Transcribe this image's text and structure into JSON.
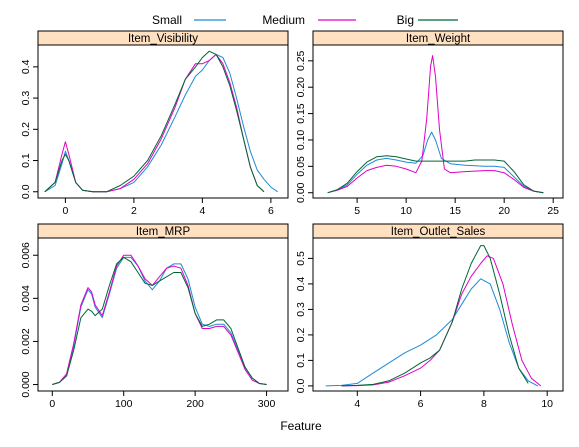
{
  "legend": {
    "placement": "top",
    "items": [
      {
        "label": "Small",
        "color": "#1f8ad6"
      },
      {
        "label": "Medium",
        "color": "#e000c8"
      },
      {
        "label": "Big",
        "color": "#006633"
      }
    ]
  },
  "xlabel": "Feature",
  "panel_strip_color": "#ffe0c0",
  "chart_data": [
    {
      "type": "line",
      "title": "Item_Visibility",
      "xlim": [
        -0.8,
        6.5
      ],
      "ylim": [
        -0.02,
        0.47
      ],
      "xticks": [
        0,
        2,
        4,
        6
      ],
      "yticks": [
        0.0,
        0.1,
        0.2,
        0.3,
        0.4
      ],
      "ytick_labels": [
        "0.0",
        "0.1",
        "0.2",
        "0.3",
        "0.4"
      ],
      "series": [
        {
          "name": "Small",
          "x": [
            -0.6,
            -0.3,
            -0.1,
            0,
            0.1,
            0.3,
            0.5,
            0.8,
            1.2,
            1.6,
            2.0,
            2.4,
            2.8,
            3.2,
            3.5,
            3.8,
            4.0,
            4.2,
            4.4,
            4.6,
            4.8,
            5.0,
            5.2,
            5.4,
            5.6,
            5.8,
            6.0,
            6.2
          ],
          "y": [
            0.0,
            0.02,
            0.09,
            0.13,
            0.1,
            0.03,
            0.005,
            0.0,
            0.0,
            0.01,
            0.03,
            0.08,
            0.15,
            0.24,
            0.31,
            0.37,
            0.39,
            0.42,
            0.44,
            0.43,
            0.38,
            0.3,
            0.21,
            0.13,
            0.07,
            0.04,
            0.015,
            0.0
          ]
        },
        {
          "name": "Medium",
          "x": [
            -0.6,
            -0.3,
            -0.1,
            0,
            0.1,
            0.3,
            0.5,
            0.8,
            1.2,
            1.6,
            2.0,
            2.4,
            2.8,
            3.2,
            3.5,
            3.8,
            4.0,
            4.2,
            4.4,
            4.6,
            4.8,
            5.0,
            5.2,
            5.4,
            5.6,
            5.8
          ],
          "y": [
            0.0,
            0.03,
            0.12,
            0.16,
            0.12,
            0.03,
            0.005,
            0.0,
            0.0,
            0.01,
            0.04,
            0.09,
            0.17,
            0.27,
            0.36,
            0.41,
            0.41,
            0.42,
            0.44,
            0.41,
            0.35,
            0.27,
            0.17,
            0.08,
            0.02,
            0.0
          ]
        },
        {
          "name": "Big",
          "x": [
            -0.6,
            -0.3,
            -0.1,
            0,
            0.1,
            0.3,
            0.5,
            0.8,
            1.2,
            1.6,
            2.0,
            2.4,
            2.8,
            3.2,
            3.5,
            3.8,
            4.0,
            4.2,
            4.4,
            4.6,
            4.8,
            5.0,
            5.2,
            5.4,
            5.6,
            5.8
          ],
          "y": [
            0.0,
            0.03,
            0.1,
            0.12,
            0.1,
            0.03,
            0.005,
            0.0,
            0.0,
            0.02,
            0.05,
            0.1,
            0.18,
            0.28,
            0.36,
            0.4,
            0.43,
            0.45,
            0.44,
            0.4,
            0.34,
            0.26,
            0.17,
            0.08,
            0.02,
            0.0
          ]
        }
      ]
    },
    {
      "type": "line",
      "title": "Item_Weight",
      "xlim": [
        0.5,
        26
      ],
      "ylim": [
        -0.01,
        0.28
      ],
      "xticks": [
        5,
        10,
        15,
        20,
        25
      ],
      "yticks": [
        0.0,
        0.05,
        0.1,
        0.15,
        0.2,
        0.25
      ],
      "ytick_labels": [
        "0.00",
        "0.05",
        "0.10",
        "0.15",
        "0.20",
        "0.25"
      ],
      "series": [
        {
          "name": "Small",
          "x": [
            2,
            3,
            4,
            5,
            6,
            7,
            8,
            9,
            10,
            11,
            11.7,
            12.2,
            12.6,
            13,
            13.6,
            14.5,
            16,
            18,
            19,
            20,
            21,
            22,
            23,
            24
          ],
          "y": [
            0.0,
            0.005,
            0.015,
            0.035,
            0.052,
            0.062,
            0.065,
            0.062,
            0.058,
            0.056,
            0.07,
            0.1,
            0.115,
            0.1,
            0.065,
            0.055,
            0.052,
            0.05,
            0.05,
            0.048,
            0.03,
            0.012,
            0.003,
            0.0
          ]
        },
        {
          "name": "Medium",
          "x": [
            2,
            3,
            4,
            5,
            6,
            7,
            8,
            9,
            10,
            11,
            11.6,
            12.1,
            12.5,
            12.7,
            13,
            13.4,
            13.9,
            14.5,
            16,
            18,
            19,
            20,
            21,
            22,
            23,
            24
          ],
          "y": [
            0.0,
            0.005,
            0.012,
            0.028,
            0.042,
            0.048,
            0.052,
            0.05,
            0.045,
            0.038,
            0.06,
            0.14,
            0.24,
            0.26,
            0.22,
            0.12,
            0.045,
            0.038,
            0.04,
            0.042,
            0.042,
            0.038,
            0.025,
            0.01,
            0.003,
            0.0
          ]
        },
        {
          "name": "Big",
          "x": [
            2,
            3,
            4,
            5,
            6,
            7,
            8,
            9,
            10,
            11,
            12,
            13,
            14,
            15,
            16,
            17,
            18,
            19,
            20,
            21,
            22,
            23,
            24
          ],
          "y": [
            0.0,
            0.006,
            0.018,
            0.04,
            0.058,
            0.068,
            0.07,
            0.068,
            0.064,
            0.06,
            0.06,
            0.06,
            0.06,
            0.06,
            0.06,
            0.062,
            0.062,
            0.062,
            0.06,
            0.04,
            0.015,
            0.003,
            0.0
          ]
        }
      ]
    },
    {
      "type": "line",
      "title": "Item_MRP",
      "xlim": [
        -20,
        330
      ],
      "ylim": [
        -0.0003,
        0.0068
      ],
      "xticks": [
        0,
        100,
        200,
        300
      ],
      "yticks": [
        0.0,
        0.002,
        0.004,
        0.006
      ],
      "ytick_labels": [
        "0.000",
        "0.002",
        "0.004",
        "0.006"
      ],
      "series": [
        {
          "name": "Small",
          "x": [
            0,
            10,
            20,
            30,
            40,
            50,
            55,
            60,
            70,
            80,
            90,
            100,
            110,
            120,
            130,
            140,
            150,
            160,
            170,
            180,
            190,
            200,
            210,
            220,
            230,
            240,
            250,
            260,
            270,
            280,
            290,
            300
          ],
          "y": [
            0,
            0.0001,
            0.0004,
            0.0018,
            0.0036,
            0.0044,
            0.0042,
            0.0036,
            0.0031,
            0.0042,
            0.0054,
            0.0059,
            0.0059,
            0.0055,
            0.0048,
            0.0044,
            0.0048,
            0.0054,
            0.0056,
            0.0056,
            0.0049,
            0.0036,
            0.0028,
            0.0027,
            0.0028,
            0.0028,
            0.0024,
            0.0016,
            0.0008,
            0.0003,
            5e-05,
            0
          ]
        },
        {
          "name": "Medium",
          "x": [
            0,
            10,
            20,
            30,
            40,
            50,
            55,
            60,
            70,
            80,
            90,
            100,
            110,
            120,
            130,
            140,
            150,
            160,
            170,
            180,
            190,
            200,
            210,
            220,
            230,
            240,
            250,
            260,
            270,
            280,
            290,
            300
          ],
          "y": [
            0,
            0.0001,
            0.0005,
            0.0019,
            0.0037,
            0.0045,
            0.0043,
            0.0037,
            0.0032,
            0.0043,
            0.0055,
            0.006,
            0.006,
            0.0055,
            0.0049,
            0.0046,
            0.005,
            0.0054,
            0.0055,
            0.0054,
            0.0046,
            0.0033,
            0.0026,
            0.0026,
            0.0027,
            0.0027,
            0.0023,
            0.0015,
            0.0007,
            0.0002,
            5e-05,
            0
          ]
        },
        {
          "name": "Big",
          "x": [
            0,
            10,
            20,
            30,
            40,
            50,
            55,
            60,
            70,
            80,
            90,
            100,
            110,
            120,
            130,
            140,
            150,
            160,
            170,
            180,
            190,
            200,
            210,
            220,
            230,
            240,
            250,
            260,
            270,
            280,
            290,
            300
          ],
          "y": [
            0,
            0.0001,
            0.0004,
            0.0016,
            0.0031,
            0.0035,
            0.0034,
            0.0032,
            0.0035,
            0.0046,
            0.0056,
            0.0059,
            0.0057,
            0.0052,
            0.0047,
            0.0046,
            0.0048,
            0.005,
            0.0052,
            0.0052,
            0.0045,
            0.0033,
            0.0027,
            0.0028,
            0.003,
            0.003,
            0.0026,
            0.0017,
            0.0008,
            0.0003,
            5e-05,
            0
          ]
        }
      ]
    },
    {
      "type": "line",
      "title": "Item_Outlet_Sales",
      "xlim": [
        2.6,
        10.5
      ],
      "ylim": [
        -0.02,
        0.58
      ],
      "xticks": [
        4,
        6,
        8,
        10
      ],
      "yticks": [
        0.0,
        0.1,
        0.2,
        0.3,
        0.4,
        0.5
      ],
      "ytick_labels": [
        "0.0",
        "0.1",
        "0.2",
        "0.3",
        "0.4",
        "0.5"
      ],
      "series": [
        {
          "name": "Small",
          "x": [
            3,
            3.5,
            4,
            4.5,
            5,
            5.5,
            6,
            6.5,
            7,
            7.3,
            7.6,
            7.9,
            8.2,
            8.5,
            8.8,
            9.1,
            9.4,
            9.7
          ],
          "y": [
            0,
            0.002,
            0.01,
            0.05,
            0.09,
            0.13,
            0.16,
            0.2,
            0.26,
            0.32,
            0.38,
            0.42,
            0.4,
            0.3,
            0.17,
            0.07,
            0.02,
            0.0
          ]
        },
        {
          "name": "Medium",
          "x": [
            3.5,
            4,
            4.5,
            5,
            5.5,
            6,
            6.3,
            6.6,
            7,
            7.3,
            7.6,
            7.9,
            8.1,
            8.3,
            8.6,
            8.9,
            9.2,
            9.5,
            9.8
          ],
          "y": [
            0,
            0.001,
            0.004,
            0.015,
            0.04,
            0.07,
            0.1,
            0.14,
            0.25,
            0.36,
            0.43,
            0.48,
            0.51,
            0.5,
            0.4,
            0.24,
            0.1,
            0.03,
            0.0
          ]
        },
        {
          "name": "Big",
          "x": [
            3.5,
            4,
            4.5,
            5,
            5.5,
            6,
            6.3,
            6.6,
            7,
            7.3,
            7.6,
            7.9,
            8.0,
            8.2,
            8.5,
            8.8,
            9.1,
            9.4
          ],
          "y": [
            0,
            0.002,
            0.006,
            0.02,
            0.05,
            0.09,
            0.11,
            0.14,
            0.25,
            0.38,
            0.48,
            0.55,
            0.55,
            0.5,
            0.36,
            0.2,
            0.07,
            0.01
          ]
        }
      ]
    }
  ]
}
